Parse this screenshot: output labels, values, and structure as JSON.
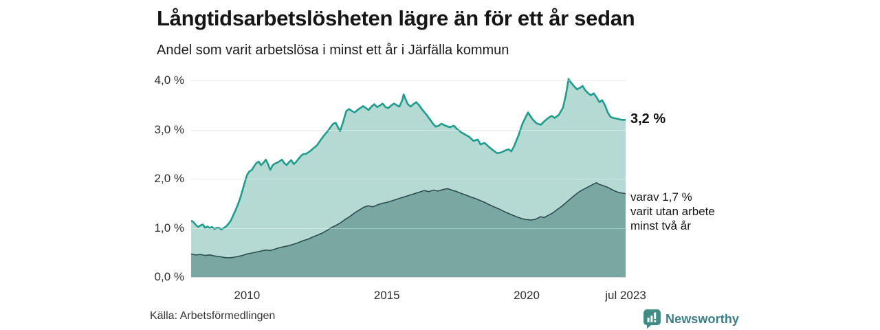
{
  "header": {
    "title": "Långtidsarbetslösheten lägre än för ett år sedan",
    "subtitle": "Andel som varit arbetslösa i minst ett år i Järfälla kommun"
  },
  "annotations": {
    "latest_value_main": "3,2 %",
    "secondary": {
      "lines": [
        "varav 1,7 %",
        "varit utan arbete",
        "minst två år"
      ]
    }
  },
  "footer": {
    "source": "Källa: Arbetsförmedlingen",
    "brand": "Newsworthy"
  },
  "colors": {
    "accent_teal": "#1f9c8c",
    "fill_light": "#b5dad4",
    "fill_dark": "#78a8a1",
    "line_dark": "#2e4b50",
    "grid": "#dcdcdc",
    "brand": "#3b7e85",
    "brand_mark": "#3f8d85"
  },
  "chart_data": {
    "type": "area",
    "title": "Långtidsarbetslösheten lägre än för ett år sedan",
    "subtitle": "Andel som varit arbetslösa i minst ett år i Järfälla kommun",
    "unit": "%",
    "grid": true,
    "legend_position": "none",
    "x_range": [
      2008.0,
      2023.54
    ],
    "y_range": [
      0,
      4.17
    ],
    "y_ticks": [
      {
        "value": 0,
        "label": "0,0 %"
      },
      {
        "value": 1,
        "label": "1,0 %"
      },
      {
        "value": 2,
        "label": "2,0 %"
      },
      {
        "value": 3,
        "label": "3,0 %"
      },
      {
        "value": 4,
        "label": "4,0 %"
      }
    ],
    "x_ticks": [
      {
        "value": 2010,
        "label": "2010"
      },
      {
        "value": 2015,
        "label": "2015"
      },
      {
        "value": 2020,
        "label": "2020"
      },
      {
        "value": 2023.54,
        "label": "jul 2023"
      }
    ],
    "series": [
      {
        "name": "arbetslösa minst ett år",
        "end_label": "3,2 %",
        "end_value": 3.2,
        "line_color": "#1f9c8c",
        "fill_color": "#b5dad4",
        "line_width": 2.6,
        "points": [
          [
            2008.0,
            1.15
          ],
          [
            2008.08,
            1.12
          ],
          [
            2008.17,
            1.06
          ],
          [
            2008.25,
            1.02
          ],
          [
            2008.33,
            1.05
          ],
          [
            2008.42,
            1.07
          ],
          [
            2008.5,
            1.0
          ],
          [
            2008.58,
            1.03
          ],
          [
            2008.67,
            1.0
          ],
          [
            2008.75,
            1.02
          ],
          [
            2008.83,
            0.98
          ],
          [
            2008.92,
            1.0
          ],
          [
            2009.0,
            1.0
          ],
          [
            2009.08,
            0.97
          ],
          [
            2009.17,
            1.0
          ],
          [
            2009.25,
            1.03
          ],
          [
            2009.33,
            1.08
          ],
          [
            2009.42,
            1.15
          ],
          [
            2009.5,
            1.25
          ],
          [
            2009.58,
            1.35
          ],
          [
            2009.67,
            1.47
          ],
          [
            2009.75,
            1.6
          ],
          [
            2009.83,
            1.75
          ],
          [
            2009.92,
            1.93
          ],
          [
            2010.0,
            2.08
          ],
          [
            2010.08,
            2.15
          ],
          [
            2010.17,
            2.18
          ],
          [
            2010.25,
            2.25
          ],
          [
            2010.33,
            2.32
          ],
          [
            2010.42,
            2.35
          ],
          [
            2010.5,
            2.28
          ],
          [
            2010.58,
            2.32
          ],
          [
            2010.67,
            2.39
          ],
          [
            2010.75,
            2.3
          ],
          [
            2010.83,
            2.18
          ],
          [
            2010.92,
            2.28
          ],
          [
            2011.0,
            2.31
          ],
          [
            2011.08,
            2.33
          ],
          [
            2011.17,
            2.36
          ],
          [
            2011.25,
            2.39
          ],
          [
            2011.33,
            2.32
          ],
          [
            2011.42,
            2.28
          ],
          [
            2011.5,
            2.34
          ],
          [
            2011.58,
            2.38
          ],
          [
            2011.67,
            2.3
          ],
          [
            2011.75,
            2.34
          ],
          [
            2011.83,
            2.4
          ],
          [
            2011.92,
            2.46
          ],
          [
            2012.0,
            2.5
          ],
          [
            2012.12,
            2.51
          ],
          [
            2012.25,
            2.56
          ],
          [
            2012.37,
            2.62
          ],
          [
            2012.5,
            2.68
          ],
          [
            2012.62,
            2.78
          ],
          [
            2012.75,
            2.88
          ],
          [
            2012.87,
            2.96
          ],
          [
            2013.0,
            3.06
          ],
          [
            2013.08,
            3.12
          ],
          [
            2013.17,
            3.14
          ],
          [
            2013.25,
            3.05
          ],
          [
            2013.33,
            2.97
          ],
          [
            2013.45,
            3.18
          ],
          [
            2013.55,
            3.38
          ],
          [
            2013.65,
            3.42
          ],
          [
            2013.75,
            3.38
          ],
          [
            2013.85,
            3.35
          ],
          [
            2013.95,
            3.4
          ],
          [
            2014.05,
            3.44
          ],
          [
            2014.15,
            3.48
          ],
          [
            2014.25,
            3.44
          ],
          [
            2014.35,
            3.4
          ],
          [
            2014.45,
            3.47
          ],
          [
            2014.55,
            3.52
          ],
          [
            2014.65,
            3.46
          ],
          [
            2014.75,
            3.49
          ],
          [
            2014.85,
            3.53
          ],
          [
            2014.95,
            3.46
          ],
          [
            2015.05,
            3.44
          ],
          [
            2015.15,
            3.49
          ],
          [
            2015.25,
            3.53
          ],
          [
            2015.35,
            3.5
          ],
          [
            2015.45,
            3.47
          ],
          [
            2015.55,
            3.6
          ],
          [
            2015.6,
            3.72
          ],
          [
            2015.67,
            3.62
          ],
          [
            2015.75,
            3.52
          ],
          [
            2015.85,
            3.47
          ],
          [
            2015.95,
            3.52
          ],
          [
            2016.05,
            3.56
          ],
          [
            2016.15,
            3.5
          ],
          [
            2016.25,
            3.42
          ],
          [
            2016.35,
            3.35
          ],
          [
            2016.45,
            3.28
          ],
          [
            2016.55,
            3.2
          ],
          [
            2016.65,
            3.12
          ],
          [
            2016.75,
            3.06
          ],
          [
            2016.85,
            3.08
          ],
          [
            2016.95,
            3.12
          ],
          [
            2017.1,
            3.08
          ],
          [
            2017.25,
            3.05
          ],
          [
            2017.4,
            3.08
          ],
          [
            2017.5,
            3.02
          ],
          [
            2017.65,
            2.95
          ],
          [
            2017.8,
            2.9
          ],
          [
            2017.95,
            2.85
          ],
          [
            2018.1,
            2.77
          ],
          [
            2018.25,
            2.8
          ],
          [
            2018.35,
            2.7
          ],
          [
            2018.5,
            2.73
          ],
          [
            2018.65,
            2.65
          ],
          [
            2018.8,
            2.58
          ],
          [
            2018.95,
            2.52
          ],
          [
            2019.1,
            2.54
          ],
          [
            2019.25,
            2.58
          ],
          [
            2019.35,
            2.6
          ],
          [
            2019.45,
            2.56
          ],
          [
            2019.55,
            2.66
          ],
          [
            2019.7,
            2.87
          ],
          [
            2019.85,
            3.12
          ],
          [
            2019.95,
            3.24
          ],
          [
            2020.05,
            3.35
          ],
          [
            2020.2,
            3.22
          ],
          [
            2020.35,
            3.13
          ],
          [
            2020.5,
            3.1
          ],
          [
            2020.65,
            3.18
          ],
          [
            2020.8,
            3.25
          ],
          [
            2020.9,
            3.28
          ],
          [
            2021.0,
            3.24
          ],
          [
            2021.15,
            3.3
          ],
          [
            2021.3,
            3.45
          ],
          [
            2021.4,
            3.7
          ],
          [
            2021.5,
            4.03
          ],
          [
            2021.6,
            3.95
          ],
          [
            2021.7,
            3.88
          ],
          [
            2021.8,
            3.82
          ],
          [
            2021.9,
            3.85
          ],
          [
            2022.0,
            3.89
          ],
          [
            2022.1,
            3.8
          ],
          [
            2022.2,
            3.74
          ],
          [
            2022.3,
            3.7
          ],
          [
            2022.4,
            3.74
          ],
          [
            2022.5,
            3.66
          ],
          [
            2022.6,
            3.56
          ],
          [
            2022.7,
            3.6
          ],
          [
            2022.8,
            3.5
          ],
          [
            2022.9,
            3.35
          ],
          [
            2023.0,
            3.26
          ],
          [
            2023.1,
            3.24
          ],
          [
            2023.25,
            3.22
          ],
          [
            2023.4,
            3.2
          ],
          [
            2023.54,
            3.2
          ]
        ]
      },
      {
        "name": "varav arbetslösa minst två år",
        "end_label": "varav 1,7 % varit utan arbete minst två år",
        "end_value": 1.7,
        "line_color": "#2e4b50",
        "fill_color": "#78a8a1",
        "line_width": 1.6,
        "points": [
          [
            2008.0,
            0.47
          ],
          [
            2008.17,
            0.45
          ],
          [
            2008.33,
            0.46
          ],
          [
            2008.5,
            0.44
          ],
          [
            2008.67,
            0.45
          ],
          [
            2008.83,
            0.43
          ],
          [
            2009.0,
            0.42
          ],
          [
            2009.17,
            0.4
          ],
          [
            2009.33,
            0.39
          ],
          [
            2009.5,
            0.4
          ],
          [
            2009.67,
            0.42
          ],
          [
            2009.83,
            0.44
          ],
          [
            2010.0,
            0.47
          ],
          [
            2010.17,
            0.49
          ],
          [
            2010.33,
            0.51
          ],
          [
            2010.5,
            0.53
          ],
          [
            2010.67,
            0.55
          ],
          [
            2010.83,
            0.54
          ],
          [
            2011.0,
            0.57
          ],
          [
            2011.17,
            0.6
          ],
          [
            2011.33,
            0.62
          ],
          [
            2011.5,
            0.64
          ],
          [
            2011.67,
            0.67
          ],
          [
            2011.83,
            0.7
          ],
          [
            2012.0,
            0.74
          ],
          [
            2012.17,
            0.77
          ],
          [
            2012.33,
            0.81
          ],
          [
            2012.5,
            0.85
          ],
          [
            2012.67,
            0.89
          ],
          [
            2012.83,
            0.94
          ],
          [
            2013.0,
            1.0
          ],
          [
            2013.17,
            1.05
          ],
          [
            2013.33,
            1.1
          ],
          [
            2013.5,
            1.17
          ],
          [
            2013.67,
            1.23
          ],
          [
            2013.83,
            1.3
          ],
          [
            2014.0,
            1.36
          ],
          [
            2014.17,
            1.42
          ],
          [
            2014.33,
            1.45
          ],
          [
            2014.5,
            1.43
          ],
          [
            2014.67,
            1.47
          ],
          [
            2014.83,
            1.5
          ],
          [
            2015.0,
            1.52
          ],
          [
            2015.17,
            1.55
          ],
          [
            2015.33,
            1.58
          ],
          [
            2015.5,
            1.61
          ],
          [
            2015.67,
            1.64
          ],
          [
            2015.83,
            1.67
          ],
          [
            2016.0,
            1.7
          ],
          [
            2016.17,
            1.73
          ],
          [
            2016.33,
            1.76
          ],
          [
            2016.5,
            1.74
          ],
          [
            2016.67,
            1.77
          ],
          [
            2016.83,
            1.75
          ],
          [
            2017.0,
            1.78
          ],
          [
            2017.17,
            1.8
          ],
          [
            2017.33,
            1.77
          ],
          [
            2017.5,
            1.74
          ],
          [
            2017.67,
            1.7
          ],
          [
            2017.83,
            1.67
          ],
          [
            2018.0,
            1.63
          ],
          [
            2018.17,
            1.6
          ],
          [
            2018.33,
            1.56
          ],
          [
            2018.5,
            1.52
          ],
          [
            2018.67,
            1.47
          ],
          [
            2018.83,
            1.43
          ],
          [
            2019.0,
            1.39
          ],
          [
            2019.17,
            1.34
          ],
          [
            2019.33,
            1.3
          ],
          [
            2019.5,
            1.26
          ],
          [
            2019.67,
            1.22
          ],
          [
            2019.83,
            1.19
          ],
          [
            2020.0,
            1.17
          ],
          [
            2020.17,
            1.16
          ],
          [
            2020.33,
            1.18
          ],
          [
            2020.5,
            1.23
          ],
          [
            2020.62,
            1.21
          ],
          [
            2020.75,
            1.25
          ],
          [
            2020.92,
            1.3
          ],
          [
            2021.08,
            1.37
          ],
          [
            2021.25,
            1.44
          ],
          [
            2021.42,
            1.52
          ],
          [
            2021.58,
            1.6
          ],
          [
            2021.75,
            1.68
          ],
          [
            2021.92,
            1.75
          ],
          [
            2022.08,
            1.8
          ],
          [
            2022.25,
            1.85
          ],
          [
            2022.42,
            1.9
          ],
          [
            2022.5,
            1.92
          ],
          [
            2022.58,
            1.89
          ],
          [
            2022.75,
            1.86
          ],
          [
            2022.92,
            1.82
          ],
          [
            2023.08,
            1.77
          ],
          [
            2023.25,
            1.73
          ],
          [
            2023.4,
            1.71
          ],
          [
            2023.54,
            1.7
          ]
        ]
      }
    ]
  }
}
